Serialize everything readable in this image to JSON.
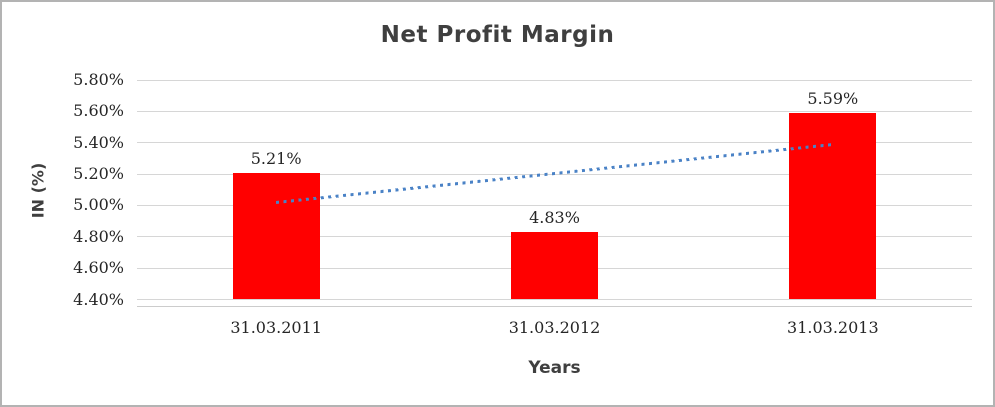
{
  "chart_data": {
    "type": "bar",
    "title": "Net Profit Margin",
    "xlabel": "Years",
    "ylabel": "IN (%)",
    "categories": [
      "31.03.2011",
      "31.03.2012",
      "31.03.2013"
    ],
    "series": [
      {
        "name": "Net Profit Margin",
        "values": [
          5.21,
          4.83,
          5.59
        ]
      }
    ],
    "data_labels": [
      "5.21%",
      "4.83%",
      "5.59%"
    ],
    "ylim": [
      4.4,
      5.8
    ],
    "ytick_step": 0.2,
    "yticks": [
      {
        "value": 5.8,
        "label": "5.80%"
      },
      {
        "value": 5.6,
        "label": "5.60%"
      },
      {
        "value": 5.4,
        "label": "5.40%"
      },
      {
        "value": 5.2,
        "label": "5.20%"
      },
      {
        "value": 5.0,
        "label": "5.00%"
      },
      {
        "value": 4.8,
        "label": "4.80%"
      },
      {
        "value": 4.6,
        "label": "4.60%"
      },
      {
        "value": 4.4,
        "label": "4.40%"
      }
    ],
    "grid": true,
    "legend": "none",
    "bar_color": "#ff0000",
    "gridline_color": "#d6d6d6",
    "trendline": {
      "style": "dotted",
      "color": "#4a82c6",
      "from_index": 0,
      "to_index": 2,
      "start_value": 5.02,
      "end_value": 5.39
    }
  }
}
